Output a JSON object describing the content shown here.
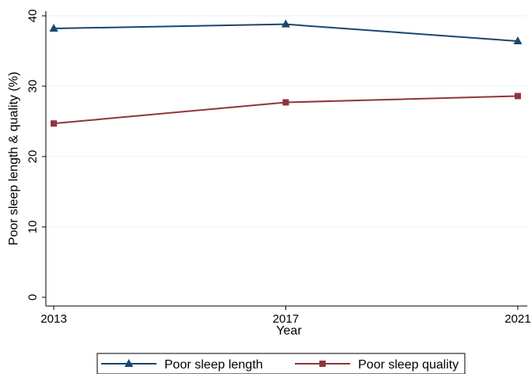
{
  "chart_data": {
    "type": "line",
    "title": "",
    "xlabel": "Year",
    "ylabel": "Poor sleep length & quality (%)",
    "x": [
      2013,
      2017,
      2021
    ],
    "xticks": [
      "2013",
      "2017",
      "2021"
    ],
    "yticks": [
      "0",
      "10",
      "20",
      "30",
      "40"
    ],
    "ylim": [
      0,
      40
    ],
    "grid": "horizontal",
    "legend_position": "bottom",
    "series": [
      {
        "name": "Poor sleep length",
        "values": [
          38.2,
          38.8,
          36.4
        ],
        "marker": "triangle",
        "color": "#1a476f"
      },
      {
        "name": "Poor sleep quality",
        "values": [
          24.7,
          27.7,
          28.6
        ],
        "marker": "square",
        "color": "#90353b"
      }
    ]
  }
}
